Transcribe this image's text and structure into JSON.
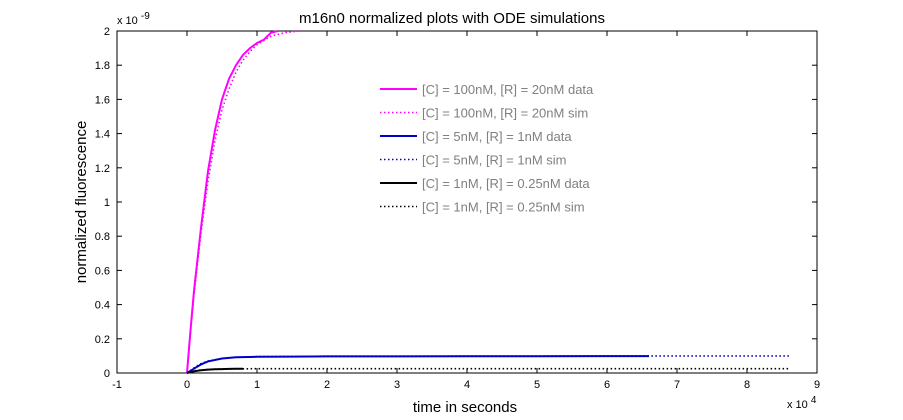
{
  "chart_data": {
    "type": "line",
    "title": "m16n0 normalized plots with ODE simulations",
    "xlabel": "time in seconds",
    "ylabel": "normalized fluorescence",
    "x_multiplier": "x 10",
    "x_multiplier_exp": "4",
    "y_multiplier": "x 10",
    "y_multiplier_exp": "-9",
    "xlim": [
      -1,
      9
    ],
    "ylim": [
      0,
      2
    ],
    "x_ticks": [
      "-1",
      "0",
      "1",
      "2",
      "3",
      "4",
      "5",
      "6",
      "7",
      "8",
      "9"
    ],
    "y_ticks": [
      "0",
      "0.2",
      "0.4",
      "0.6",
      "0.8",
      "1",
      "1.2",
      "1.4",
      "1.6",
      "1.8",
      "2"
    ],
    "grid": false,
    "legend_position": "upper-center",
    "series": [
      {
        "name": "[C] = 100nM, [R] = 20nM data",
        "color": "#ff00ff",
        "style": "solid",
        "x": [
          0,
          0.05,
          0.1,
          0.2,
          0.3,
          0.4,
          0.5,
          0.6,
          0.7,
          0.8,
          0.9,
          1.0,
          1.1,
          1.15,
          1.2,
          1.3
        ],
        "y": [
          0,
          0.25,
          0.48,
          0.85,
          1.18,
          1.42,
          1.6,
          1.72,
          1.8,
          1.86,
          1.9,
          1.93,
          1.95,
          1.97,
          1.99,
          2.0
        ]
      },
      {
        "name": "[C] = 100nM, [R] = 20nM sim",
        "color": "#ff00ff",
        "style": "dotted",
        "x": [
          0,
          0.05,
          0.1,
          0.2,
          0.3,
          0.4,
          0.5,
          0.6,
          0.7,
          0.8,
          0.9,
          1.0,
          1.2,
          1.4,
          1.6
        ],
        "y": [
          0,
          0.24,
          0.46,
          0.82,
          1.12,
          1.36,
          1.54,
          1.66,
          1.76,
          1.83,
          1.88,
          1.92,
          1.97,
          1.99,
          2.0
        ]
      },
      {
        "name": "[C] = 5nM, [R] = 1nM data",
        "color": "#0000cc",
        "style": "solid",
        "x": [
          0,
          0.1,
          0.2,
          0.3,
          0.5,
          0.7,
          1.0,
          1.5,
          2.0,
          3.0,
          4.0,
          5.0,
          6.0,
          6.6
        ],
        "y": [
          0,
          0.025,
          0.05,
          0.068,
          0.085,
          0.092,
          0.095,
          0.096,
          0.097,
          0.097,
          0.098,
          0.098,
          0.099,
          0.099
        ]
      },
      {
        "name": "[C] = 5nM, [R] = 1nM sim",
        "color": "#0000cc",
        "style": "dotted",
        "x": [
          0,
          0.1,
          0.2,
          0.3,
          0.5,
          0.7,
          1.0,
          2.0,
          4.0,
          6.0,
          7.0,
          8.0,
          8.6
        ],
        "y": [
          0,
          0.03,
          0.055,
          0.07,
          0.085,
          0.092,
          0.096,
          0.098,
          0.099,
          0.1,
          0.1,
          0.1,
          0.1
        ]
      },
      {
        "name": "[C] = 1nM, [R] = 0.25nM data",
        "color": "#000000",
        "style": "solid",
        "x": [
          0,
          0.1,
          0.2,
          0.3,
          0.4,
          0.5,
          0.6,
          0.7,
          0.8
        ],
        "y": [
          0,
          0.01,
          0.016,
          0.02,
          0.022,
          0.023,
          0.024,
          0.025,
          0.025
        ]
      },
      {
        "name": "[C] = 1nM, [R] = 0.25nM sim",
        "color": "#000000",
        "style": "dotted",
        "x": [
          0,
          0.1,
          0.2,
          0.4,
          0.6,
          1.0,
          2.0,
          4.0,
          6.0,
          8.0,
          8.6
        ],
        "y": [
          0,
          0.012,
          0.018,
          0.022,
          0.024,
          0.025,
          0.025,
          0.025,
          0.025,
          0.025,
          0.025
        ]
      }
    ]
  }
}
